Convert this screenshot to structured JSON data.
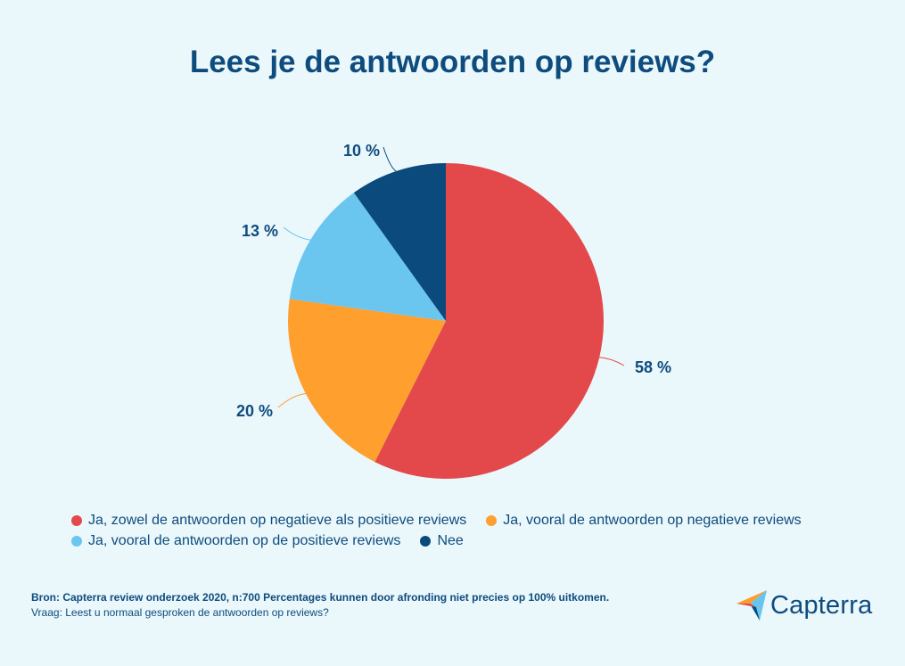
{
  "title": "Lees je de antwoorden op reviews?",
  "chart_data": {
    "type": "pie",
    "title": "Lees je de antwoorden op reviews?",
    "slices": [
      {
        "label": "Ja, zowel de antwoorden op negatieve als positieve reviews",
        "value": 58,
        "display": "58 %",
        "color": "#E3484A"
      },
      {
        "label": "Ja, vooral de antwoorden op negatieve reviews",
        "value": 20,
        "display": "20 %",
        "color": "#FF9F2E"
      },
      {
        "label": "Ja, vooral de antwoorden op de positieve reviews",
        "value": 13,
        "display": "13 %",
        "color": "#6AC6EF"
      },
      {
        "label": "Nee",
        "value": 10,
        "display": "10 %",
        "color": "#0A4A7D"
      }
    ],
    "legend_position": "bottom"
  },
  "source": {
    "line1": "Bron: Capterra review onderzoek 2020, n:700 Percentages kunnen door afronding niet precies op 100% uitkomen.",
    "line2": "Vraag: Leest u normaal gesproken de antwoorden op reviews?"
  },
  "logo": {
    "name": "Capterra"
  },
  "colors": {
    "background": "#EAF7FB",
    "text": "#0E4C7E"
  }
}
